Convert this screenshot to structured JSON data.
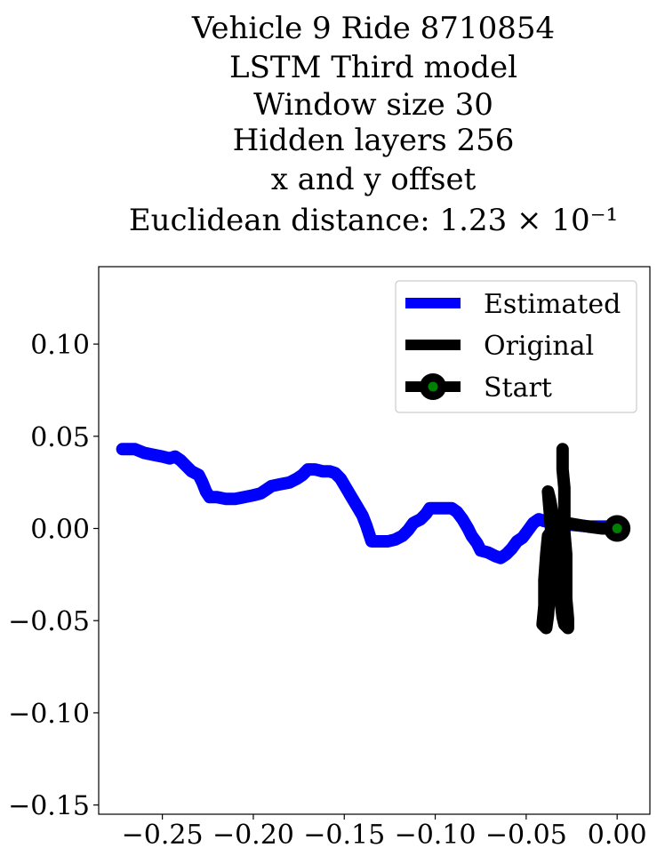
{
  "chart_data": {
    "type": "line",
    "title_lines": [
      "Vehicle 9 Ride 8710854",
      "LSTM Third model",
      "Window size 30",
      "Hidden layers 256",
      "x and y offset",
      "Euclidean distance: 1.23 × 10⁻¹"
    ],
    "xlim": [
      -0.285,
      0.018
    ],
    "ylim": [
      -0.155,
      0.142
    ],
    "x_ticks": [
      -0.25,
      -0.2,
      -0.15,
      -0.1,
      -0.05,
      0.0
    ],
    "x_tick_labels": [
      "−0.25",
      "−0.20",
      "−0.15",
      "−0.10",
      "−0.05",
      "0.00"
    ],
    "y_ticks": [
      0.1,
      0.05,
      0.0,
      -0.05,
      -0.1,
      -0.15
    ],
    "y_tick_labels": [
      "0.10",
      "0.05",
      "0.00",
      "−0.05",
      "−0.10",
      "−0.15"
    ],
    "legend_position": "top-right",
    "legend": [
      "Estimated",
      "Original",
      "Start"
    ],
    "series": [
      {
        "name": "Estimated",
        "color": "#0000ff",
        "points": [
          [
            -0.272,
            0.043
          ],
          [
            -0.265,
            0.043
          ],
          [
            -0.26,
            0.041
          ],
          [
            -0.255,
            0.04
          ],
          [
            -0.25,
            0.039
          ],
          [
            -0.246,
            0.038
          ],
          [
            -0.243,
            0.039
          ],
          [
            -0.24,
            0.037
          ],
          [
            -0.237,
            0.034
          ],
          [
            -0.234,
            0.031
          ],
          [
            -0.23,
            0.029
          ],
          [
            -0.228,
            0.025
          ],
          [
            -0.226,
            0.02
          ],
          [
            -0.224,
            0.017
          ],
          [
            -0.22,
            0.017
          ],
          [
            -0.215,
            0.016
          ],
          [
            -0.21,
            0.016
          ],
          [
            -0.205,
            0.017
          ],
          [
            -0.2,
            0.018
          ],
          [
            -0.196,
            0.019
          ],
          [
            -0.193,
            0.021
          ],
          [
            -0.19,
            0.023
          ],
          [
            -0.185,
            0.024
          ],
          [
            -0.18,
            0.025
          ],
          [
            -0.176,
            0.027
          ],
          [
            -0.173,
            0.029
          ],
          [
            -0.17,
            0.032
          ],
          [
            -0.166,
            0.032
          ],
          [
            -0.162,
            0.031
          ],
          [
            -0.158,
            0.031
          ],
          [
            -0.155,
            0.03
          ],
          [
            -0.152,
            0.027
          ],
          [
            -0.149,
            0.022
          ],
          [
            -0.146,
            0.017
          ],
          [
            -0.143,
            0.012
          ],
          [
            -0.14,
            0.007
          ],
          [
            -0.138,
            0.002
          ],
          [
            -0.136,
            -0.004
          ],
          [
            -0.135,
            -0.007
          ],
          [
            -0.13,
            -0.007
          ],
          [
            -0.126,
            -0.007
          ],
          [
            -0.122,
            -0.006
          ],
          [
            -0.118,
            -0.004
          ],
          [
            -0.115,
            -0.001
          ],
          [
            -0.112,
            0.003
          ],
          [
            -0.108,
            0.005
          ],
          [
            -0.105,
            0.008
          ],
          [
            -0.103,
            0.011
          ],
          [
            -0.099,
            0.011
          ],
          [
            -0.095,
            0.011
          ],
          [
            -0.091,
            0.011
          ],
          [
            -0.088,
            0.009
          ],
          [
            -0.085,
            0.005
          ],
          [
            -0.082,
            0.0
          ],
          [
            -0.08,
            -0.004
          ],
          [
            -0.077,
            -0.008
          ],
          [
            -0.075,
            -0.012
          ],
          [
            -0.071,
            -0.013
          ],
          [
            -0.067,
            -0.015
          ],
          [
            -0.064,
            -0.016
          ],
          [
            -0.061,
            -0.014
          ],
          [
            -0.058,
            -0.011
          ],
          [
            -0.055,
            -0.007
          ],
          [
            -0.052,
            -0.005
          ],
          [
            -0.049,
            -0.001
          ],
          [
            -0.046,
            0.003
          ],
          [
            -0.043,
            0.005
          ],
          [
            -0.04,
            0.004
          ],
          [
            -0.035,
            0.003
          ],
          [
            -0.025,
            0.002
          ],
          [
            -0.015,
            0.001
          ],
          [
            -0.005,
            0.001
          ],
          [
            0.0,
            0.0
          ]
        ]
      },
      {
        "name": "Original",
        "color": "#000000",
        "points": [
          [
            0.0,
            0.0
          ],
          [
            -0.008,
            0.0
          ],
          [
            -0.016,
            0.001
          ],
          [
            -0.022,
            0.002
          ],
          [
            -0.028,
            0.003
          ],
          [
            -0.032,
            0.003
          ],
          [
            -0.035,
            0.0
          ],
          [
            -0.038,
            -0.004
          ],
          [
            -0.039,
            -0.014
          ],
          [
            -0.04,
            -0.028
          ],
          [
            -0.04,
            -0.042
          ],
          [
            -0.041,
            -0.052
          ],
          [
            -0.039,
            -0.054
          ],
          [
            -0.038,
            -0.047
          ],
          [
            -0.037,
            -0.033
          ],
          [
            -0.036,
            -0.018
          ],
          [
            -0.036,
            -0.005
          ],
          [
            -0.037,
            0.008
          ],
          [
            -0.038,
            0.02
          ],
          [
            -0.037,
            0.016
          ],
          [
            -0.035,
            0.005
          ],
          [
            -0.034,
            -0.007
          ],
          [
            -0.033,
            -0.019
          ],
          [
            -0.032,
            -0.03
          ],
          [
            -0.031,
            -0.04
          ],
          [
            -0.03,
            -0.048
          ],
          [
            -0.029,
            -0.052
          ],
          [
            -0.027,
            -0.054
          ],
          [
            -0.027,
            -0.049
          ],
          [
            -0.028,
            -0.038
          ],
          [
            -0.028,
            -0.026
          ],
          [
            -0.028,
            -0.014
          ],
          [
            -0.029,
            -0.002
          ],
          [
            -0.029,
            0.01
          ],
          [
            -0.029,
            0.022
          ],
          [
            -0.03,
            0.032
          ],
          [
            -0.03,
            0.039
          ],
          [
            -0.03,
            0.043
          ]
        ]
      }
    ],
    "start": {
      "name": "Start",
      "x": 0.0,
      "y": 0.0,
      "color": "#008000",
      "edge_color": "#000000"
    }
  }
}
